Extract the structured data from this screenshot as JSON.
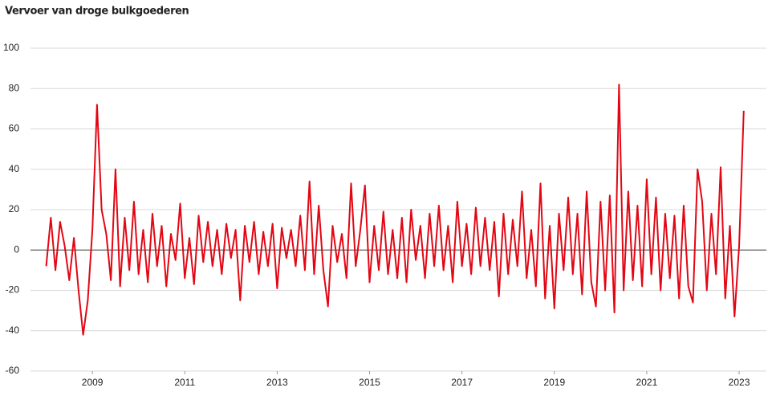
{
  "chart_data": {
    "type": "line",
    "title": "Vervoer van droge bulkgoederen",
    "x": [
      2008.0,
      2008.1,
      2008.2,
      2008.3,
      2008.4,
      2008.5,
      2008.6,
      2008.7,
      2008.8,
      2008.9,
      2009.0,
      2009.1,
      2009.2,
      2009.3,
      2009.4,
      2009.5,
      2009.6,
      2009.7,
      2009.8,
      2009.9,
      2010.0,
      2010.1,
      2010.2,
      2010.3,
      2010.4,
      2010.5,
      2010.6,
      2010.7,
      2010.8,
      2010.9,
      2011.0,
      2011.1,
      2011.2,
      2011.3,
      2011.4,
      2011.5,
      2011.6,
      2011.7,
      2011.8,
      2011.9,
      2012.0,
      2012.1,
      2012.2,
      2012.3,
      2012.4,
      2012.5,
      2012.6,
      2012.7,
      2012.8,
      2012.9,
      2013.0,
      2013.1,
      2013.2,
      2013.3,
      2013.4,
      2013.5,
      2013.6,
      2013.7,
      2013.8,
      2013.9,
      2014.0,
      2014.1,
      2014.2,
      2014.3,
      2014.4,
      2014.5,
      2014.6,
      2014.7,
      2014.8,
      2014.9,
      2015.0,
      2015.1,
      2015.2,
      2015.3,
      2015.4,
      2015.5,
      2015.6,
      2015.7,
      2015.8,
      2015.9,
      2016.0,
      2016.1,
      2016.2,
      2016.3,
      2016.4,
      2016.5,
      2016.6,
      2016.7,
      2016.8,
      2016.9,
      2017.0,
      2017.1,
      2017.2,
      2017.3,
      2017.4,
      2017.5,
      2017.6,
      2017.7,
      2017.8,
      2017.9,
      2018.0,
      2018.1,
      2018.2,
      2018.3,
      2018.4,
      2018.5,
      2018.6,
      2018.7,
      2018.8,
      2018.9,
      2019.0,
      2019.1,
      2019.2,
      2019.3,
      2019.4,
      2019.5,
      2019.6,
      2019.7,
      2019.8,
      2019.9,
      2020.0,
      2020.1,
      2020.2,
      2020.3,
      2020.4,
      2020.5,
      2020.6,
      2020.7,
      2020.8,
      2020.9,
      2021.0,
      2021.1,
      2021.2,
      2021.3,
      2021.4,
      2021.5,
      2021.6,
      2021.7,
      2021.8,
      2021.9,
      2022.0,
      2022.1,
      2022.2,
      2022.3,
      2022.4,
      2022.5,
      2022.6,
      2022.7,
      2022.8,
      2022.9,
      2023.0,
      2023.1
    ],
    "values": [
      -8,
      16,
      -10,
      14,
      2,
      -15,
      6,
      -20,
      -42,
      -25,
      10,
      72,
      20,
      8,
      -15,
      40,
      -18,
      16,
      -10,
      24,
      -12,
      10,
      -16,
      18,
      -8,
      12,
      -18,
      8,
      -5,
      23,
      -14,
      6,
      -17,
      17,
      -6,
      14,
      -8,
      10,
      -12,
      13,
      -4,
      10,
      -25,
      12,
      -6,
      14,
      -12,
      9,
      -8,
      13,
      -19,
      11,
      -4,
      10,
      -8,
      17,
      -10,
      34,
      -12,
      22,
      -10,
      -28,
      12,
      -6,
      8,
      -14,
      33,
      -8,
      10,
      32,
      -16,
      12,
      -10,
      19,
      -12,
      10,
      -14,
      16,
      -16,
      20,
      -5,
      12,
      -14,
      18,
      -8,
      22,
      -10,
      12,
      -16,
      24,
      -8,
      13,
      -12,
      21,
      -8,
      16,
      -10,
      14,
      -23,
      18,
      -12,
      15,
      -8,
      29,
      -14,
      10,
      -18,
      33,
      -24,
      12,
      -29,
      18,
      -10,
      26,
      -12,
      18,
      -22,
      29,
      -16,
      -28,
      24,
      -20,
      27,
      -31,
      82,
      -20,
      29,
      -15,
      22,
      -18,
      35,
      -12,
      26,
      -20,
      18,
      -14,
      17,
      -24,
      22,
      -18,
      -26,
      40,
      24,
      -20,
      18,
      -12,
      41,
      -24,
      12,
      -33,
      2,
      69
    ],
    "color": "#e30613",
    "xlim": [
      2007.66,
      2023.59
    ],
    "xticks": [
      2009,
      2011,
      2013,
      2015,
      2017,
      2019,
      2021,
      2023
    ],
    "ylim": [
      -60,
      100
    ],
    "yticks": [
      100,
      80,
      60,
      40,
      20,
      0,
      -20,
      -40,
      -60
    ],
    "grid": true
  }
}
